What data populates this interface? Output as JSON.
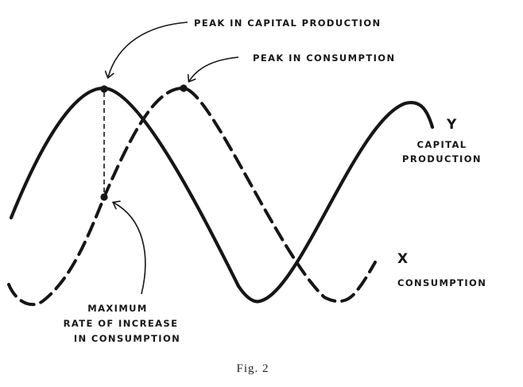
{
  "annotations": {
    "peak_capital": "PEAK IN CAPITAL PRODUCTION",
    "peak_consumption": "PEAK IN CONSUMPTION",
    "max_rate_line1": "MAXIMUM",
    "max_rate_line2": "RATE OF INCREASE",
    "max_rate_line3": "IN CONSUMPTION"
  },
  "curves": {
    "y": {
      "letter": "Y",
      "label_line1": "CAPITAL",
      "label_line2": "PRODUCTION",
      "stroke": "solid"
    },
    "x": {
      "letter": "X",
      "label": "CONSUMPTION",
      "stroke": "dashed"
    }
  },
  "caption": "Fig. 2",
  "colors": {
    "ink": "#161616",
    "paper": "#ffffff"
  }
}
